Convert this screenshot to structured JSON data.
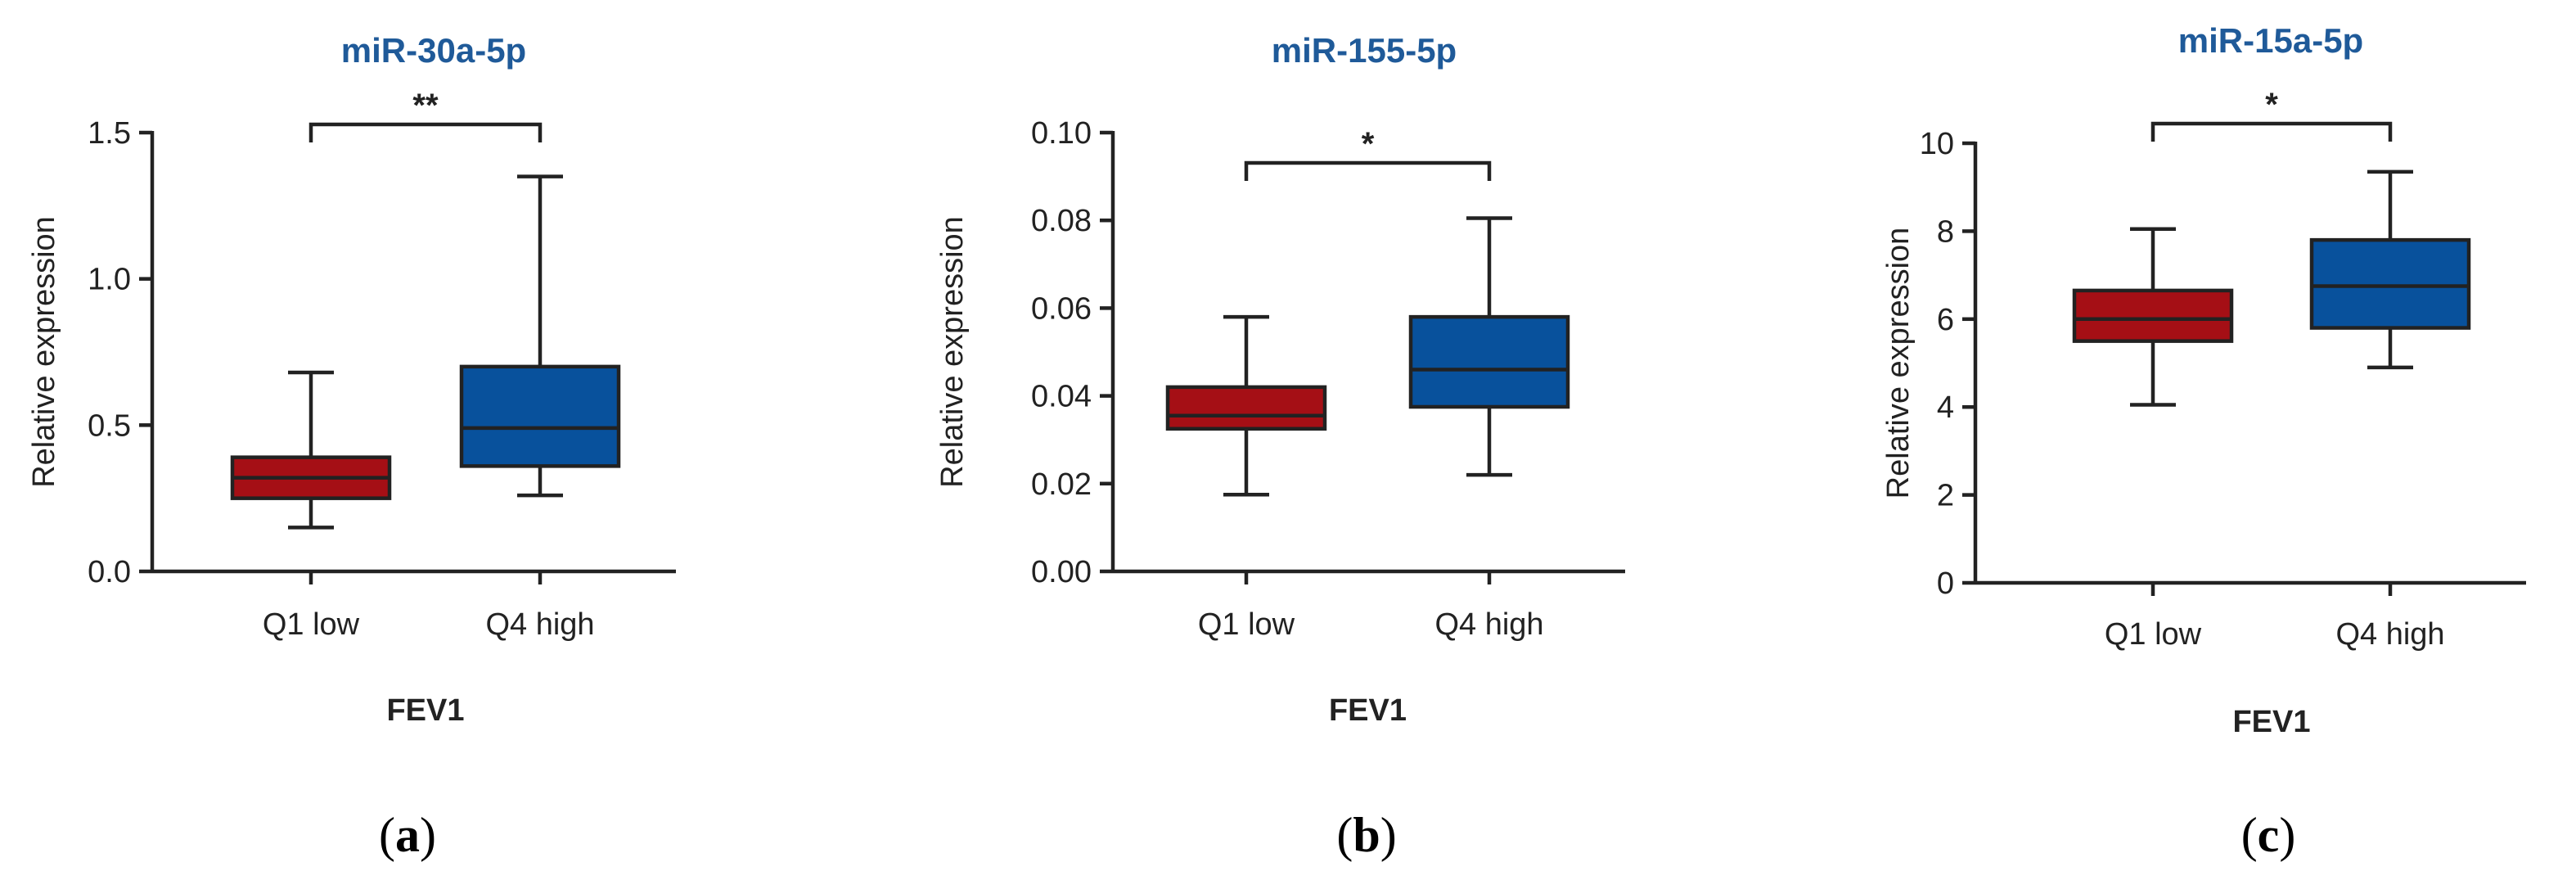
{
  "chart_data": [
    {
      "type": "box",
      "panel": "(a)",
      "panel_letter": "a",
      "title": "miR-30a-5p",
      "xlabel": "FEV1",
      "ylabel": "Relative expression",
      "ylim": [
        0,
        1.5
      ],
      "yticks": [
        "0.0",
        "0.5",
        "1.0",
        "1.5"
      ],
      "ytick_values": [
        0,
        0.5,
        1.0,
        1.5
      ],
      "categories": [
        "Q1 low",
        "Q4 high"
      ],
      "boxes": [
        {
          "name": "Q1 low",
          "min": 0.15,
          "q1": 0.25,
          "median": 0.32,
          "q3": 0.39,
          "max": 0.68,
          "color": "#a50f15"
        },
        {
          "name": "Q4 high",
          "min": 0.26,
          "q1": 0.36,
          "median": 0.49,
          "q3": 0.7,
          "max": 1.35,
          "color": "#08519c"
        }
      ],
      "significance": "**"
    },
    {
      "type": "box",
      "panel": "(b)",
      "panel_letter": "b",
      "title": "miR-155-5p",
      "xlabel": "FEV1",
      "ylabel": "Relative expression",
      "ylim": [
        0,
        0.1
      ],
      "yticks": [
        "0.00",
        "0.02",
        "0.04",
        "0.06",
        "0.08",
        "0.10"
      ],
      "ytick_values": [
        0,
        0.02,
        0.04,
        0.06,
        0.08,
        0.1
      ],
      "categories": [
        "Q1 low",
        "Q4 high"
      ],
      "boxes": [
        {
          "name": "Q1 low",
          "min": 0.0175,
          "q1": 0.0325,
          "median": 0.0355,
          "q3": 0.042,
          "max": 0.058,
          "color": "#a50f15"
        },
        {
          "name": "Q4 high",
          "min": 0.022,
          "q1": 0.0375,
          "median": 0.046,
          "q3": 0.058,
          "max": 0.0805,
          "color": "#08519c"
        }
      ],
      "significance": "*"
    },
    {
      "type": "box",
      "panel": "(c)",
      "panel_letter": "c",
      "title": "miR-15a-5p",
      "xlabel": "FEV1",
      "ylabel": "Relative expression",
      "ylim": [
        0,
        10
      ],
      "yticks": [
        "0",
        "2",
        "4",
        "6",
        "8",
        "10"
      ],
      "ytick_values": [
        0,
        2,
        4,
        6,
        8,
        10
      ],
      "categories": [
        "Q1 low",
        "Q4 high"
      ],
      "boxes": [
        {
          "name": "Q1 low",
          "min": 4.05,
          "q1": 5.5,
          "median": 6.0,
          "q3": 6.65,
          "max": 8.05,
          "color": "#a50f15"
        },
        {
          "name": "Q4 high",
          "min": 4.9,
          "q1": 5.8,
          "median": 6.75,
          "q3": 7.8,
          "max": 9.35,
          "color": "#08519c"
        }
      ],
      "significance": "*"
    }
  ]
}
